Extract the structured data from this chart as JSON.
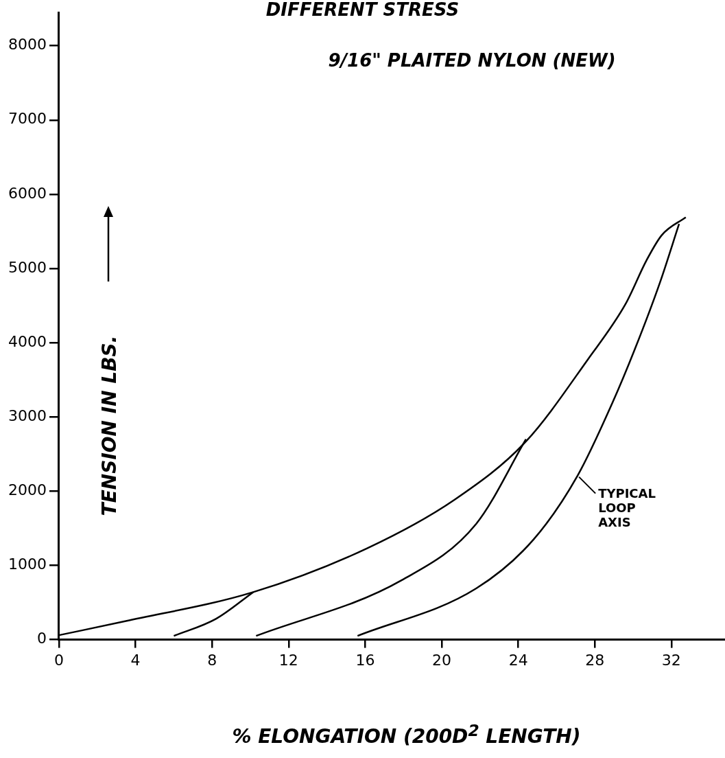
{
  "chart_data": {
    "type": "line",
    "title": "DIFFERENT STRESS",
    "subtitle": "9/16\" PLAITED NYLON (NEW)",
    "xlabel": "% ELONGATION (200D$^{2}$ LENGTH)",
    "ylabel": "TENSION IN LBS.",
    "annotations": [
      {
        "text": "TYPICAL LOOP AXIS",
        "x": 27.1,
        "y": 2210
      }
    ],
    "series": [
      {
        "color": "#000000",
        "x": [
          0,
          3.5,
          10.15,
          16.1,
          20.7,
          24.4,
          27.65,
          29.6,
          30.7,
          31.5,
          32.75
        ],
        "values": [
          60,
          250,
          640,
          1230,
          1890,
          2670,
          3780,
          4520,
          5110,
          5450,
          5690
        ]
      },
      {
        "color": "#000000",
        "x": [
          6.0,
          8.2,
          10.15
        ],
        "values": [
          50,
          280,
          640
        ]
      },
      {
        "color": "#000000",
        "x": [
          10.3,
          17.9,
          21.8,
          24.4
        ],
        "values": [
          50,
          800,
          1560,
          2700
        ]
      },
      {
        "color": "#000000",
        "x": [
          15.6,
          21.8,
          24.8,
          27.1,
          28.9,
          30.1,
          31.4,
          32.4
        ],
        "values": [
          50,
          690,
          1350,
          2210,
          3180,
          3920,
          4810,
          5600
        ]
      }
    ],
    "xlim": [
      0,
      34.8
    ],
    "xticks": [
      0,
      4,
      8,
      12,
      16,
      20,
      24,
      28,
      32
    ],
    "ylim": [
      0,
      8450
    ],
    "yticks": [
      0,
      1000,
      2000,
      3000,
      4000,
      5000,
      6000,
      7000,
      8000
    ],
    "grid": false,
    "legend": false,
    "marker": "none",
    "line_style": "solid"
  }
}
